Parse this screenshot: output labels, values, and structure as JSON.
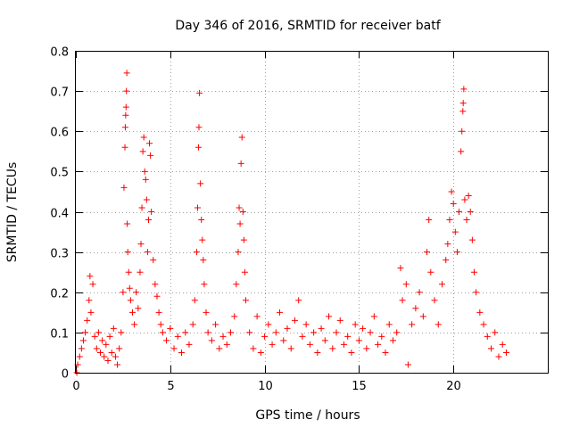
{
  "chart_data": {
    "type": "scatter",
    "title": "Day 346 of 2016, SRMTID for receiver batf",
    "xlabel": "GPS time / hours",
    "ylabel": "SRMTID / TECUs",
    "xlim": [
      0,
      25
    ],
    "ylim": [
      0,
      0.8
    ],
    "xticks": [
      "0",
      "5",
      "10",
      "15",
      "20"
    ],
    "yticks": [
      "0",
      "0.1",
      "0.2",
      "0.3",
      "0.4",
      "0.5",
      "0.6",
      "0.7",
      "0.8"
    ],
    "grid": true,
    "marker": "+",
    "color": "#ff0000",
    "series": [
      {
        "name": "SRMTID",
        "points": [
          [
            0.05,
            0.0
          ],
          [
            0.1,
            0.02
          ],
          [
            0.2,
            0.04
          ],
          [
            0.3,
            0.06
          ],
          [
            0.4,
            0.08
          ],
          [
            0.5,
            0.1
          ],
          [
            0.6,
            0.13
          ],
          [
            0.7,
            0.18
          ],
          [
            0.75,
            0.24
          ],
          [
            0.8,
            0.15
          ],
          [
            0.9,
            0.22
          ],
          [
            1.0,
            0.09
          ],
          [
            1.1,
            0.06
          ],
          [
            1.2,
            0.1
          ],
          [
            1.3,
            0.05
          ],
          [
            1.4,
            0.08
          ],
          [
            1.5,
            0.04
          ],
          [
            1.6,
            0.07
          ],
          [
            1.7,
            0.03
          ],
          [
            1.8,
            0.09
          ],
          [
            1.9,
            0.05
          ],
          [
            2.0,
            0.11
          ],
          [
            2.1,
            0.04
          ],
          [
            2.2,
            0.02
          ],
          [
            2.3,
            0.06
          ],
          [
            2.4,
            0.1
          ],
          [
            2.5,
            0.2
          ],
          [
            2.55,
            0.46
          ],
          [
            2.6,
            0.56
          ],
          [
            2.62,
            0.61
          ],
          [
            2.64,
            0.64
          ],
          [
            2.66,
            0.66
          ],
          [
            2.68,
            0.7
          ],
          [
            2.7,
            0.745
          ],
          [
            2.72,
            0.37
          ],
          [
            2.75,
            0.3
          ],
          [
            2.8,
            0.25
          ],
          [
            2.85,
            0.21
          ],
          [
            2.9,
            0.18
          ],
          [
            3.0,
            0.15
          ],
          [
            3.1,
            0.12
          ],
          [
            3.2,
            0.2
          ],
          [
            3.3,
            0.16
          ],
          [
            3.4,
            0.25
          ],
          [
            3.45,
            0.32
          ],
          [
            3.5,
            0.41
          ],
          [
            3.55,
            0.55
          ],
          [
            3.6,
            0.585
          ],
          [
            3.65,
            0.5
          ],
          [
            3.7,
            0.48
          ],
          [
            3.75,
            0.43
          ],
          [
            3.8,
            0.3
          ],
          [
            3.85,
            0.38
          ],
          [
            3.9,
            0.57
          ],
          [
            3.95,
            0.54
          ],
          [
            4.0,
            0.4
          ],
          [
            4.1,
            0.28
          ],
          [
            4.2,
            0.22
          ],
          [
            4.3,
            0.19
          ],
          [
            4.4,
            0.15
          ],
          [
            4.5,
            0.12
          ],
          [
            4.6,
            0.1
          ],
          [
            4.8,
            0.08
          ],
          [
            5.0,
            0.11
          ],
          [
            5.2,
            0.06
          ],
          [
            5.4,
            0.09
          ],
          [
            5.6,
            0.05
          ],
          [
            5.8,
            0.1
          ],
          [
            6.0,
            0.07
          ],
          [
            6.2,
            0.12
          ],
          [
            6.3,
            0.18
          ],
          [
            6.4,
            0.3
          ],
          [
            6.45,
            0.41
          ],
          [
            6.5,
            0.56
          ],
          [
            6.52,
            0.61
          ],
          [
            6.55,
            0.695
          ],
          [
            6.6,
            0.47
          ],
          [
            6.65,
            0.38
          ],
          [
            6.7,
            0.33
          ],
          [
            6.75,
            0.28
          ],
          [
            6.8,
            0.22
          ],
          [
            6.9,
            0.15
          ],
          [
            7.0,
            0.1
          ],
          [
            7.2,
            0.08
          ],
          [
            7.4,
            0.12
          ],
          [
            7.6,
            0.06
          ],
          [
            7.8,
            0.09
          ],
          [
            8.0,
            0.07
          ],
          [
            8.2,
            0.1
          ],
          [
            8.4,
            0.14
          ],
          [
            8.5,
            0.22
          ],
          [
            8.6,
            0.3
          ],
          [
            8.65,
            0.41
          ],
          [
            8.7,
            0.37
          ],
          [
            8.75,
            0.52
          ],
          [
            8.8,
            0.585
          ],
          [
            8.85,
            0.4
          ],
          [
            8.9,
            0.33
          ],
          [
            8.95,
            0.25
          ],
          [
            9.0,
            0.18
          ],
          [
            9.2,
            0.1
          ],
          [
            9.4,
            0.06
          ],
          [
            9.6,
            0.14
          ],
          [
            9.8,
            0.05
          ],
          [
            10.0,
            0.09
          ],
          [
            10.2,
            0.12
          ],
          [
            10.4,
            0.07
          ],
          [
            10.6,
            0.1
          ],
          [
            10.8,
            0.15
          ],
          [
            11.0,
            0.08
          ],
          [
            11.2,
            0.11
          ],
          [
            11.4,
            0.06
          ],
          [
            11.6,
            0.13
          ],
          [
            11.8,
            0.18
          ],
          [
            12.0,
            0.09
          ],
          [
            12.2,
            0.12
          ],
          [
            12.4,
            0.07
          ],
          [
            12.6,
            0.1
          ],
          [
            12.8,
            0.05
          ],
          [
            13.0,
            0.11
          ],
          [
            13.2,
            0.08
          ],
          [
            13.4,
            0.14
          ],
          [
            13.6,
            0.06
          ],
          [
            13.8,
            0.1
          ],
          [
            14.0,
            0.13
          ],
          [
            14.2,
            0.07
          ],
          [
            14.4,
            0.09
          ],
          [
            14.6,
            0.05
          ],
          [
            14.8,
            0.12
          ],
          [
            15.0,
            0.08
          ],
          [
            15.2,
            0.11
          ],
          [
            15.4,
            0.06
          ],
          [
            15.6,
            0.1
          ],
          [
            15.8,
            0.14
          ],
          [
            16.0,
            0.07
          ],
          [
            16.2,
            0.09
          ],
          [
            16.4,
            0.05
          ],
          [
            16.6,
            0.12
          ],
          [
            16.8,
            0.08
          ],
          [
            17.0,
            0.1
          ],
          [
            17.2,
            0.26
          ],
          [
            17.3,
            0.18
          ],
          [
            17.5,
            0.22
          ],
          [
            17.6,
            0.02
          ],
          [
            17.8,
            0.12
          ],
          [
            18.0,
            0.16
          ],
          [
            18.2,
            0.2
          ],
          [
            18.4,
            0.14
          ],
          [
            18.6,
            0.3
          ],
          [
            18.7,
            0.38
          ],
          [
            18.8,
            0.25
          ],
          [
            19.0,
            0.18
          ],
          [
            19.2,
            0.12
          ],
          [
            19.4,
            0.22
          ],
          [
            19.6,
            0.28
          ],
          [
            19.7,
            0.32
          ],
          [
            19.8,
            0.38
          ],
          [
            19.9,
            0.45
          ],
          [
            20.0,
            0.42
          ],
          [
            20.1,
            0.35
          ],
          [
            20.2,
            0.3
          ],
          [
            20.3,
            0.4
          ],
          [
            20.4,
            0.55
          ],
          [
            20.45,
            0.6
          ],
          [
            20.5,
            0.65
          ],
          [
            20.52,
            0.67
          ],
          [
            20.55,
            0.705
          ],
          [
            20.6,
            0.43
          ],
          [
            20.7,
            0.38
          ],
          [
            20.8,
            0.44
          ],
          [
            20.9,
            0.4
          ],
          [
            21.0,
            0.33
          ],
          [
            21.1,
            0.25
          ],
          [
            21.2,
            0.2
          ],
          [
            21.4,
            0.15
          ],
          [
            21.6,
            0.12
          ],
          [
            21.8,
            0.09
          ],
          [
            22.0,
            0.06
          ],
          [
            22.2,
            0.1
          ],
          [
            22.4,
            0.04
          ],
          [
            22.6,
            0.07
          ],
          [
            22.8,
            0.05
          ]
        ]
      }
    ]
  }
}
